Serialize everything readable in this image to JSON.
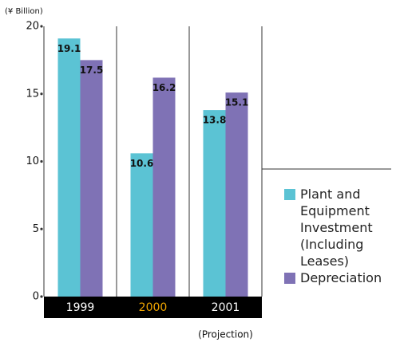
{
  "chart_data": {
    "type": "bar",
    "y_label": "(¥ Billion)",
    "categories": [
      "1999",
      "2000",
      "2001"
    ],
    "category_colors": [
      "#ffffff",
      "#f0a500",
      "#ffffff"
    ],
    "note": "(Projection)",
    "series": [
      {
        "name": "Plant and Equipment Investment (Including Leases)",
        "color": "#5bc3d4",
        "values": [
          19.1,
          10.6,
          13.8
        ]
      },
      {
        "name": "Depreciation",
        "color": "#7f72b5",
        "values": [
          17.5,
          16.2,
          15.1
        ]
      }
    ],
    "ylim": [
      0,
      20
    ],
    "yticks": [
      0,
      5,
      10,
      15,
      20
    ]
  }
}
